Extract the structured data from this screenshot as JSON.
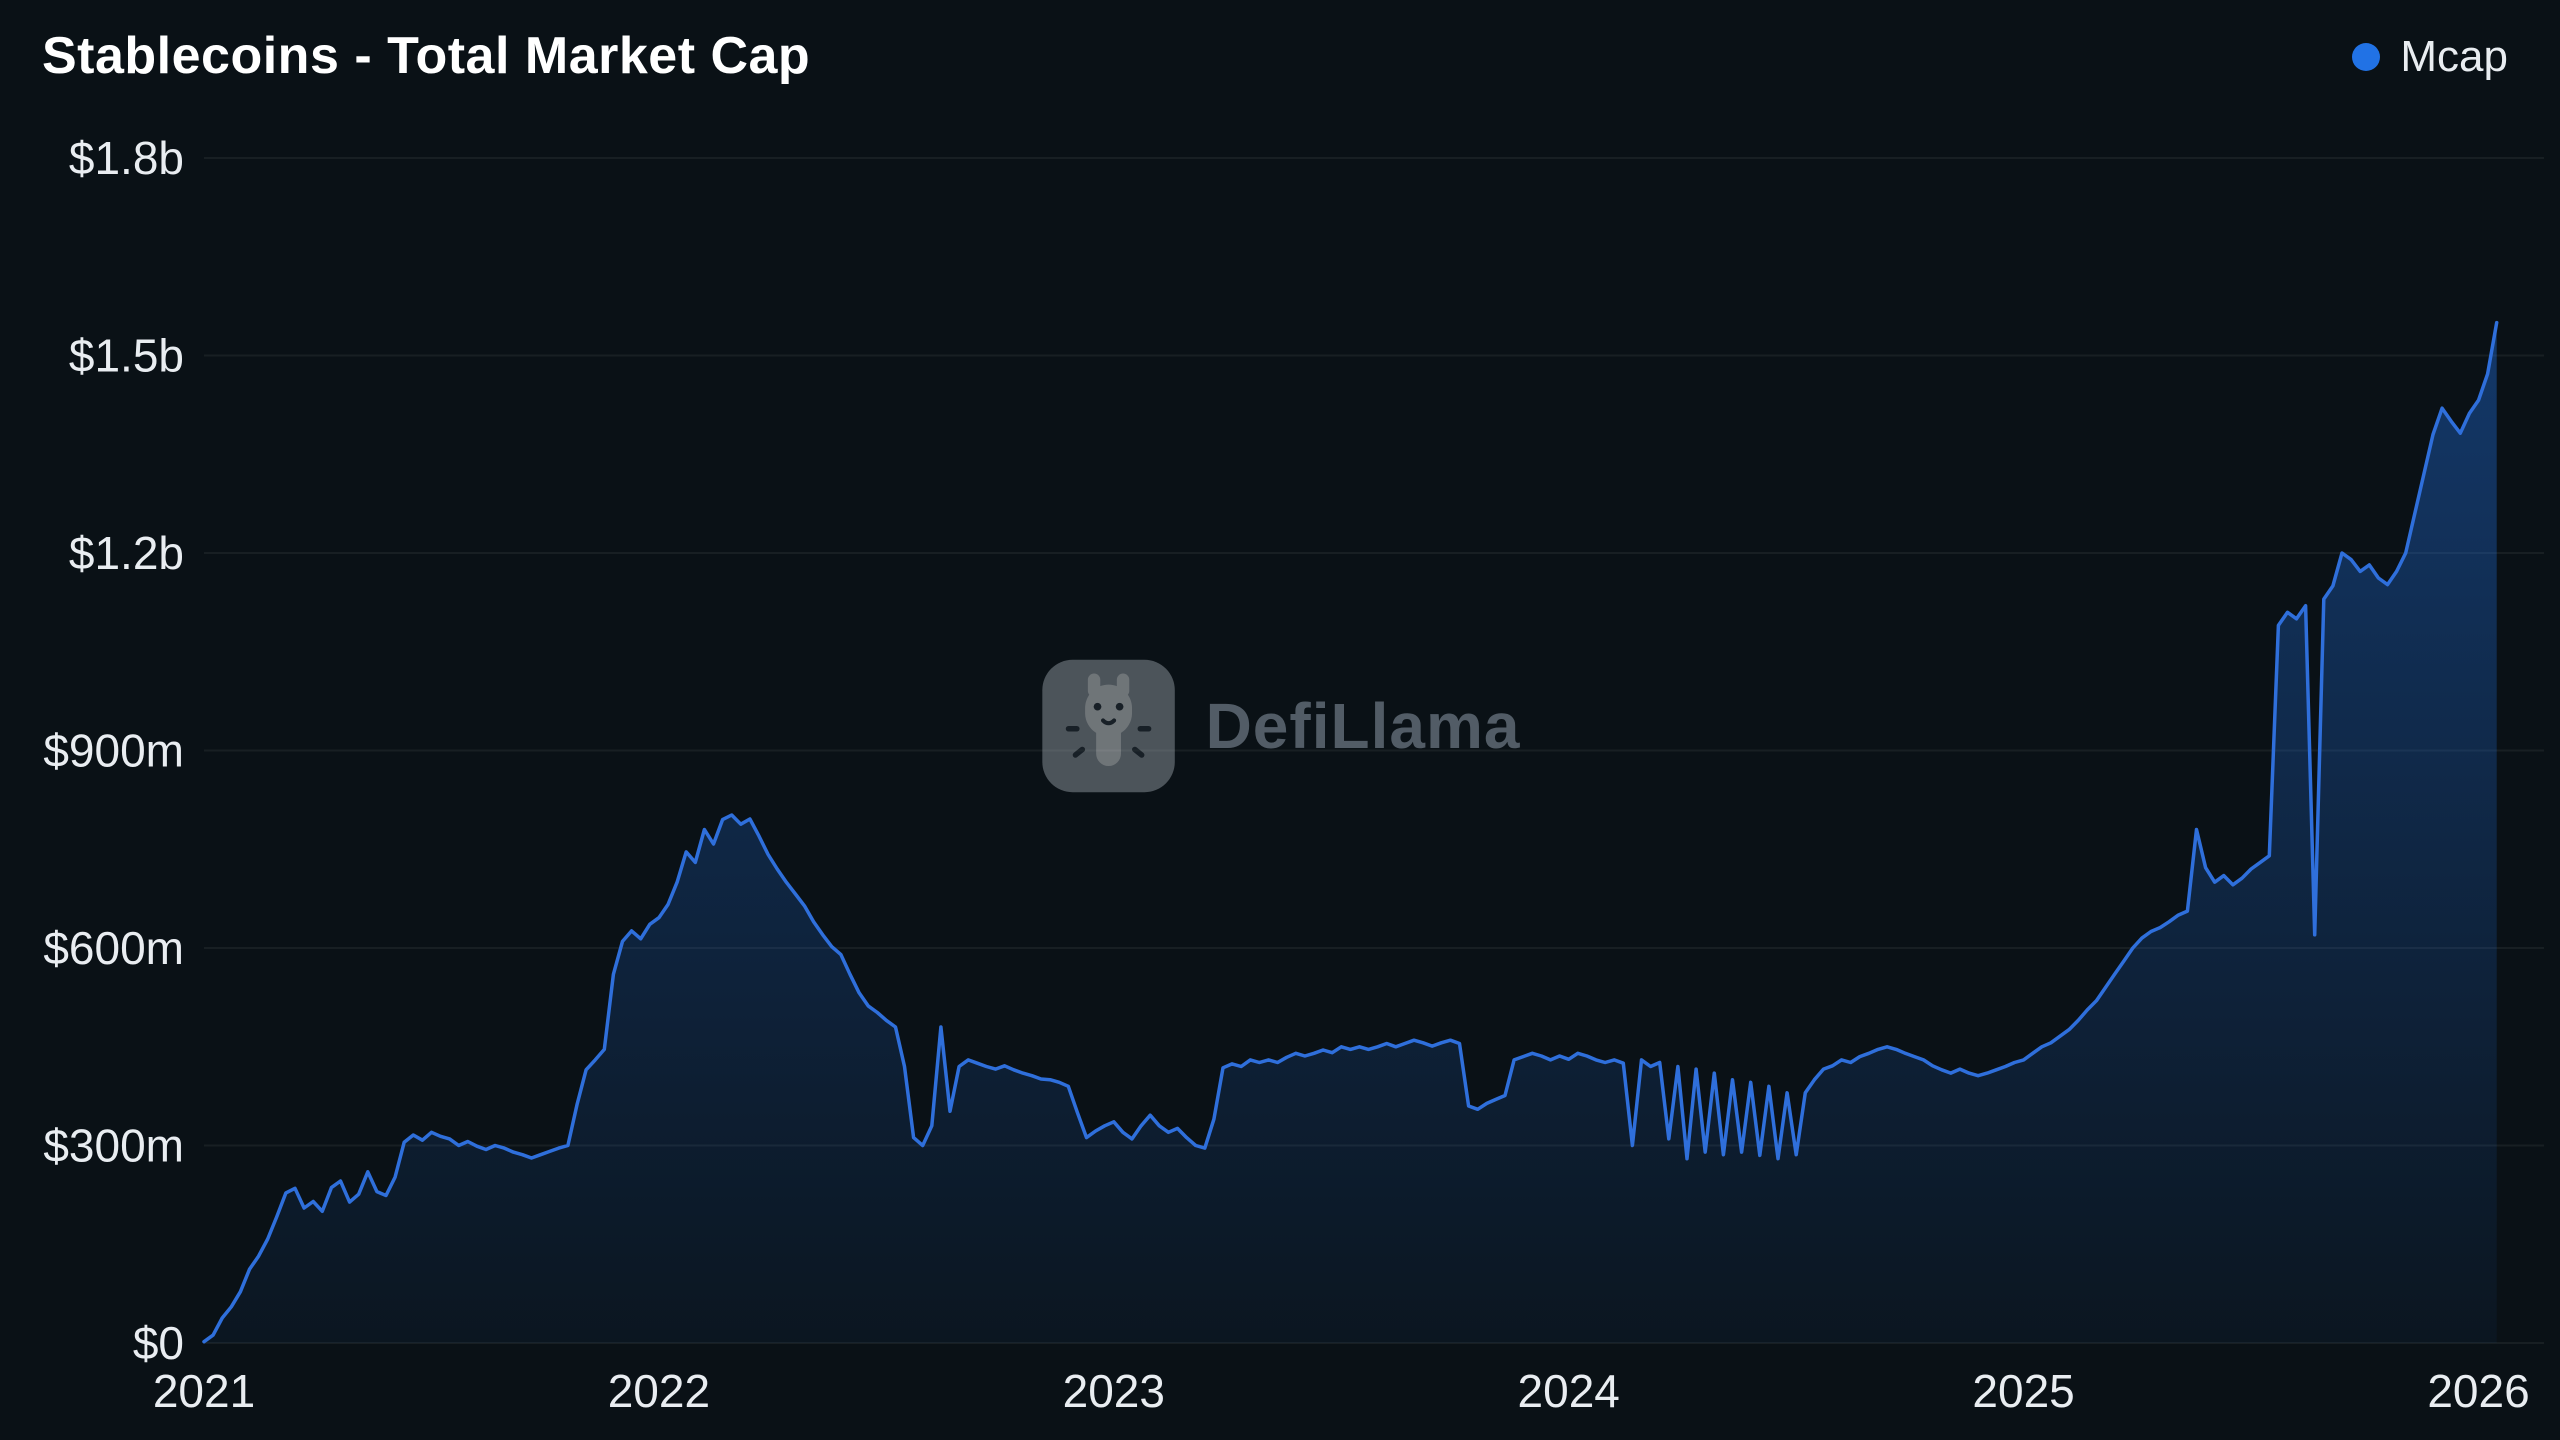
{
  "page": {
    "title": "Stablecoins - Total Market Cap"
  },
  "legend": {
    "label": "Mcap",
    "color": "#2172e5"
  },
  "watermark": {
    "text": "DefiLlama"
  },
  "colors": {
    "background": "#0a1116",
    "line": "#2f6fdb",
    "area_top": "#2172e5",
    "axis_text": "#e9edf1",
    "grid": "rgba(255,255,255,0.06)"
  },
  "chart_data": {
    "type": "area",
    "title": "Stablecoins - Total Market Cap",
    "series_name": "Mcap",
    "x_unit": "year (fractional)",
    "y_unit": "USD millions",
    "xlim": [
      2021,
      2026.1
    ],
    "ylim": [
      0,
      1800
    ],
    "grid": true,
    "legend_position": "top-right",
    "y_ticks": [
      {
        "value": 0,
        "label": "$0"
      },
      {
        "value": 300,
        "label": "$300m"
      },
      {
        "value": 600,
        "label": "$600m"
      },
      {
        "value": 900,
        "label": "$900m"
      },
      {
        "value": 1200,
        "label": "$1.2b"
      },
      {
        "value": 1500,
        "label": "$1.5b"
      },
      {
        "value": 1800,
        "label": "$1.8b"
      }
    ],
    "x_ticks": [
      {
        "value": 2021,
        "label": "2021"
      },
      {
        "value": 2022,
        "label": "2022"
      },
      {
        "value": 2023,
        "label": "2023"
      },
      {
        "value": 2024,
        "label": "2024"
      },
      {
        "value": 2025,
        "label": "2025"
      },
      {
        "value": 2026,
        "label": "2026"
      }
    ],
    "points": [
      [
        2021.0,
        2
      ],
      [
        2021.02,
        12
      ],
      [
        2021.04,
        38
      ],
      [
        2021.06,
        55
      ],
      [
        2021.08,
        78
      ],
      [
        2021.1,
        112
      ],
      [
        2021.12,
        132
      ],
      [
        2021.14,
        158
      ],
      [
        2021.16,
        192
      ],
      [
        2021.18,
        228
      ],
      [
        2021.2,
        235
      ],
      [
        2021.22,
        205
      ],
      [
        2021.24,
        215
      ],
      [
        2021.26,
        200
      ],
      [
        2021.28,
        236
      ],
      [
        2021.3,
        246
      ],
      [
        2021.32,
        214
      ],
      [
        2021.34,
        226
      ],
      [
        2021.36,
        260
      ],
      [
        2021.38,
        230
      ],
      [
        2021.4,
        224
      ],
      [
        2021.42,
        252
      ],
      [
        2021.44,
        305
      ],
      [
        2021.46,
        316
      ],
      [
        2021.48,
        308
      ],
      [
        2021.5,
        320
      ],
      [
        2021.52,
        314
      ],
      [
        2021.54,
        310
      ],
      [
        2021.56,
        300
      ],
      [
        2021.58,
        306
      ],
      [
        2021.6,
        299
      ],
      [
        2021.62,
        294
      ],
      [
        2021.64,
        300
      ],
      [
        2021.66,
        296
      ],
      [
        2021.68,
        290
      ],
      [
        2021.7,
        286
      ],
      [
        2021.72,
        281
      ],
      [
        2021.74,
        286
      ],
      [
        2021.76,
        291
      ],
      [
        2021.78,
        296
      ],
      [
        2021.8,
        300
      ],
      [
        2021.82,
        362
      ],
      [
        2021.84,
        415
      ],
      [
        2021.86,
        430
      ],
      [
        2021.88,
        446
      ],
      [
        2021.9,
        560
      ],
      [
        2021.92,
        610
      ],
      [
        2021.94,
        626
      ],
      [
        2021.96,
        614
      ],
      [
        2021.98,
        636
      ],
      [
        2022.0,
        646
      ],
      [
        2022.02,
        666
      ],
      [
        2022.04,
        700
      ],
      [
        2022.06,
        746
      ],
      [
        2022.08,
        730
      ],
      [
        2022.1,
        780
      ],
      [
        2022.12,
        758
      ],
      [
        2022.14,
        795
      ],
      [
        2022.16,
        802
      ],
      [
        2022.18,
        788
      ],
      [
        2022.2,
        796
      ],
      [
        2022.22,
        770
      ],
      [
        2022.24,
        742
      ],
      [
        2022.26,
        720
      ],
      [
        2022.28,
        700
      ],
      [
        2022.3,
        682
      ],
      [
        2022.32,
        664
      ],
      [
        2022.34,
        640
      ],
      [
        2022.36,
        620
      ],
      [
        2022.38,
        602
      ],
      [
        2022.4,
        590
      ],
      [
        2022.42,
        560
      ],
      [
        2022.44,
        532
      ],
      [
        2022.46,
        512
      ],
      [
        2022.48,
        502
      ],
      [
        2022.5,
        490
      ],
      [
        2022.52,
        480
      ],
      [
        2022.54,
        420
      ],
      [
        2022.56,
        312
      ],
      [
        2022.58,
        300
      ],
      [
        2022.6,
        330
      ],
      [
        2022.62,
        480
      ],
      [
        2022.64,
        352
      ],
      [
        2022.66,
        420
      ],
      [
        2022.68,
        430
      ],
      [
        2022.7,
        425
      ],
      [
        2022.72,
        420
      ],
      [
        2022.74,
        416
      ],
      [
        2022.76,
        421
      ],
      [
        2022.78,
        415
      ],
      [
        2022.8,
        410
      ],
      [
        2022.82,
        406
      ],
      [
        2022.84,
        401
      ],
      [
        2022.86,
        400
      ],
      [
        2022.88,
        396
      ],
      [
        2022.9,
        390
      ],
      [
        2022.92,
        350
      ],
      [
        2022.94,
        312
      ],
      [
        2022.96,
        322
      ],
      [
        2022.98,
        330
      ],
      [
        2023.0,
        336
      ],
      [
        2023.02,
        320
      ],
      [
        2023.04,
        310
      ],
      [
        2023.06,
        330
      ],
      [
        2023.08,
        346
      ],
      [
        2023.1,
        330
      ],
      [
        2023.12,
        320
      ],
      [
        2023.14,
        326
      ],
      [
        2023.16,
        312
      ],
      [
        2023.18,
        300
      ],
      [
        2023.2,
        296
      ],
      [
        2023.22,
        340
      ],
      [
        2023.24,
        418
      ],
      [
        2023.26,
        424
      ],
      [
        2023.28,
        420
      ],
      [
        2023.3,
        430
      ],
      [
        2023.32,
        426
      ],
      [
        2023.34,
        430
      ],
      [
        2023.36,
        426
      ],
      [
        2023.38,
        434
      ],
      [
        2023.4,
        440
      ],
      [
        2023.42,
        436
      ],
      [
        2023.44,
        440
      ],
      [
        2023.46,
        445
      ],
      [
        2023.48,
        441
      ],
      [
        2023.5,
        450
      ],
      [
        2023.52,
        446
      ],
      [
        2023.54,
        450
      ],
      [
        2023.56,
        446
      ],
      [
        2023.58,
        450
      ],
      [
        2023.6,
        455
      ],
      [
        2023.62,
        450
      ],
      [
        2023.64,
        455
      ],
      [
        2023.66,
        460
      ],
      [
        2023.68,
        456
      ],
      [
        2023.7,
        451
      ],
      [
        2023.72,
        456
      ],
      [
        2023.74,
        460
      ],
      [
        2023.76,
        455
      ],
      [
        2023.78,
        360
      ],
      [
        2023.8,
        355
      ],
      [
        2023.82,
        364
      ],
      [
        2023.84,
        370
      ],
      [
        2023.86,
        376
      ],
      [
        2023.88,
        430
      ],
      [
        2023.9,
        435
      ],
      [
        2023.92,
        440
      ],
      [
        2023.94,
        436
      ],
      [
        2023.96,
        430
      ],
      [
        2023.98,
        436
      ],
      [
        2024.0,
        431
      ],
      [
        2024.02,
        440
      ],
      [
        2024.04,
        436
      ],
      [
        2024.06,
        430
      ],
      [
        2024.08,
        426
      ],
      [
        2024.1,
        430
      ],
      [
        2024.12,
        425
      ],
      [
        2024.14,
        300
      ],
      [
        2024.16,
        430
      ],
      [
        2024.18,
        420
      ],
      [
        2024.2,
        426
      ],
      [
        2024.22,
        310
      ],
      [
        2024.24,
        420
      ],
      [
        2024.26,
        280
      ],
      [
        2024.28,
        416
      ],
      [
        2024.3,
        290
      ],
      [
        2024.32,
        410
      ],
      [
        2024.34,
        286
      ],
      [
        2024.36,
        400
      ],
      [
        2024.38,
        290
      ],
      [
        2024.4,
        396
      ],
      [
        2024.42,
        285
      ],
      [
        2024.44,
        390
      ],
      [
        2024.46,
        280
      ],
      [
        2024.48,
        380
      ],
      [
        2024.5,
        286
      ],
      [
        2024.52,
        380
      ],
      [
        2024.54,
        400
      ],
      [
        2024.56,
        416
      ],
      [
        2024.58,
        421
      ],
      [
        2024.6,
        430
      ],
      [
        2024.62,
        426
      ],
      [
        2024.64,
        435
      ],
      [
        2024.66,
        440
      ],
      [
        2024.68,
        446
      ],
      [
        2024.7,
        450
      ],
      [
        2024.72,
        446
      ],
      [
        2024.74,
        440
      ],
      [
        2024.76,
        435
      ],
      [
        2024.78,
        430
      ],
      [
        2024.8,
        421
      ],
      [
        2024.82,
        415
      ],
      [
        2024.84,
        410
      ],
      [
        2024.86,
        416
      ],
      [
        2024.88,
        410
      ],
      [
        2024.9,
        406
      ],
      [
        2024.92,
        410
      ],
      [
        2024.94,
        415
      ],
      [
        2024.96,
        420
      ],
      [
        2024.98,
        426
      ],
      [
        2025.0,
        430
      ],
      [
        2025.02,
        440
      ],
      [
        2025.04,
        450
      ],
      [
        2025.06,
        456
      ],
      [
        2025.08,
        466
      ],
      [
        2025.1,
        476
      ],
      [
        2025.12,
        490
      ],
      [
        2025.14,
        506
      ],
      [
        2025.16,
        520
      ],
      [
        2025.18,
        540
      ],
      [
        2025.2,
        560
      ],
      [
        2025.22,
        580
      ],
      [
        2025.24,
        600
      ],
      [
        2025.26,
        615
      ],
      [
        2025.28,
        625
      ],
      [
        2025.3,
        631
      ],
      [
        2025.32,
        640
      ],
      [
        2025.34,
        650
      ],
      [
        2025.36,
        656
      ],
      [
        2025.38,
        780
      ],
      [
        2025.4,
        722
      ],
      [
        2025.42,
        700
      ],
      [
        2025.44,
        710
      ],
      [
        2025.46,
        696
      ],
      [
        2025.48,
        706
      ],
      [
        2025.5,
        720
      ],
      [
        2025.52,
        730
      ],
      [
        2025.54,
        740
      ],
      [
        2025.56,
        1090
      ],
      [
        2025.58,
        1110
      ],
      [
        2025.6,
        1100
      ],
      [
        2025.62,
        1120
      ],
      [
        2025.64,
        620
      ],
      [
        2025.66,
        1130
      ],
      [
        2025.68,
        1150
      ],
      [
        2025.7,
        1200
      ],
      [
        2025.72,
        1190
      ],
      [
        2025.74,
        1172
      ],
      [
        2025.76,
        1182
      ],
      [
        2025.78,
        1162
      ],
      [
        2025.8,
        1152
      ],
      [
        2025.82,
        1172
      ],
      [
        2025.84,
        1200
      ],
      [
        2025.86,
        1260
      ],
      [
        2025.88,
        1320
      ],
      [
        2025.9,
        1380
      ],
      [
        2025.92,
        1420
      ],
      [
        2025.94,
        1400
      ],
      [
        2025.96,
        1382
      ],
      [
        2025.98,
        1412
      ],
      [
        2026.0,
        1432
      ],
      [
        2026.02,
        1472
      ],
      [
        2026.04,
        1550
      ]
    ]
  }
}
